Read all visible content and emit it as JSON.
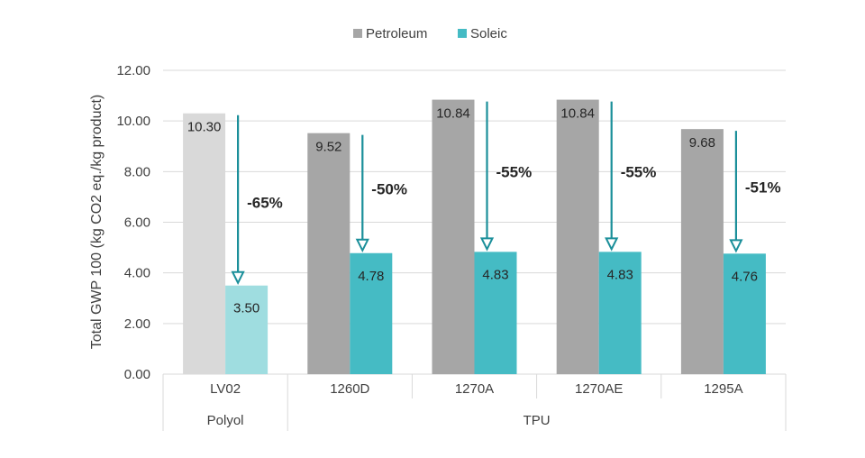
{
  "chart_data": {
    "type": "bar",
    "title": "",
    "ylabel": "Total GWP 100 (kg CO2 eq./kg product)",
    "ylim": [
      0,
      12
    ],
    "yticks": [
      "0.00",
      "2.00",
      "4.00",
      "6.00",
      "8.00",
      "10.00",
      "12.00"
    ],
    "grid": true,
    "legend_position": "top-center",
    "categories": [
      "LV02",
      "1260D",
      "1270A",
      "1270AE",
      "1295A"
    ],
    "groups": [
      {
        "label": "Polyol",
        "categories": [
          "LV02"
        ]
      },
      {
        "label": "TPU",
        "categories": [
          "1260D",
          "1270A",
          "1270AE",
          "1295A"
        ]
      }
    ],
    "series": [
      {
        "name": "Petroleum",
        "values": [
          10.3,
          9.52,
          10.84,
          10.84,
          9.68
        ],
        "labels": [
          "10.30",
          "9.52",
          "10.84",
          "10.84",
          "9.68"
        ]
      },
      {
        "name": "Soleic",
        "values": [
          3.5,
          4.78,
          4.83,
          4.83,
          4.76
        ],
        "labels": [
          "3.50",
          "4.78",
          "4.83",
          "4.83",
          "4.76"
        ]
      }
    ],
    "reductions": [
      "-65%",
      "-50%",
      "-55%",
      "-55%",
      "-51%"
    ],
    "colors": {
      "petroleum": "#a6a6a6",
      "soleic": "#45bbc4",
      "polyol_petroleum": "#d9d9d9",
      "polyol_soleic": "#9fdde0",
      "arrow": "#1b8f9a",
      "grid": "#d9d9d9",
      "axis_text": "#404040"
    }
  }
}
